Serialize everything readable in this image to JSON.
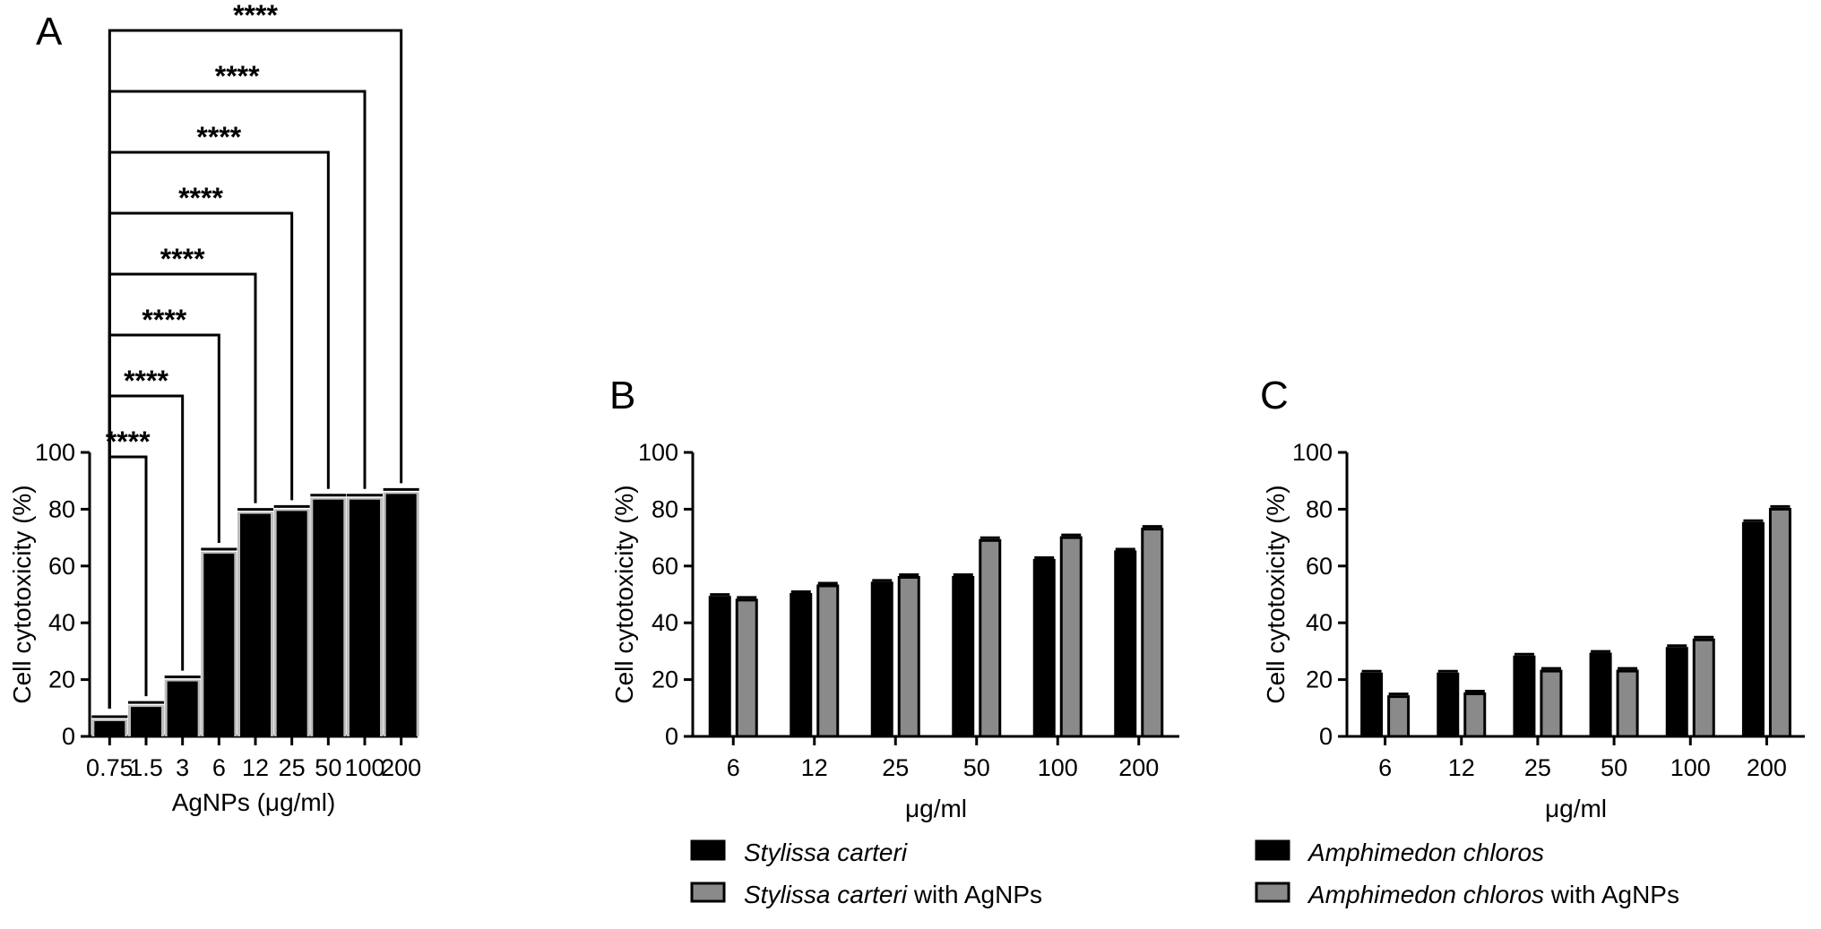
{
  "colors": {
    "series_black": "#000000",
    "series_gray": "#8a8a8a",
    "axis": "#000000"
  },
  "chart_data": [
    {
      "panel": "A",
      "type": "bar",
      "categories": [
        "0.75",
        "1.5",
        "3",
        "6",
        "12",
        "25",
        "50",
        "100",
        "200"
      ],
      "series": [
        {
          "values": [
            6,
            11,
            20,
            65,
            79,
            80,
            84,
            84,
            86
          ]
        }
      ],
      "xlabel": "AgNPs (μg/ml)",
      "ylabel": "Cell cytotoxicity (%)",
      "ylim": [
        0,
        100
      ],
      "yticks": [
        "0",
        "20",
        "40",
        "60",
        "80",
        "100"
      ],
      "significance": {
        "reference": "0.75",
        "label": "****",
        "comparisons": [
          "1.5",
          "3",
          "6",
          "12",
          "25",
          "50",
          "100",
          "200"
        ]
      }
    },
    {
      "panel": "B",
      "type": "bar",
      "categories": [
        "6",
        "12",
        "25",
        "50",
        "100",
        "200"
      ],
      "series": [
        {
          "name": "Stylissa carteri",
          "values": [
            49,
            50,
            54,
            56,
            62,
            65
          ]
        },
        {
          "name": "Stylissa carteri with AgNPs",
          "values": [
            48,
            53,
            56,
            69,
            70,
            73
          ]
        }
      ],
      "xlabel": "μg/ml",
      "ylabel": "Cell cytotoxicity (%)",
      "ylim": [
        0,
        100
      ],
      "yticks": [
        "0",
        "20",
        "40",
        "60",
        "80",
        "100"
      ],
      "legend": [
        {
          "italic": "Stylissa carteri",
          "suffix": ""
        },
        {
          "italic": "Stylissa carteri",
          "suffix": " with AgNPs"
        }
      ],
      "legend_position": "bottom"
    },
    {
      "panel": "C",
      "type": "bar",
      "categories": [
        "6",
        "12",
        "25",
        "50",
        "100",
        "200"
      ],
      "series": [
        {
          "name": "Amphimedon chloros",
          "values": [
            22,
            22,
            28,
            29,
            31,
            75
          ]
        },
        {
          "name": "Amphimedon chloros with AgNPs",
          "values": [
            14,
            15,
            23,
            23,
            34,
            80
          ]
        }
      ],
      "xlabel": "μg/ml",
      "ylabel": "Cell cytotoxicity (%)",
      "ylim": [
        0,
        100
      ],
      "yticks": [
        "0",
        "20",
        "40",
        "60",
        "80",
        "100"
      ],
      "legend": [
        {
          "italic": "Amphimedon chloros",
          "suffix": ""
        },
        {
          "italic": "Amphimedon chloros",
          "suffix": " with AgNPs"
        }
      ],
      "legend_position": "bottom"
    }
  ]
}
